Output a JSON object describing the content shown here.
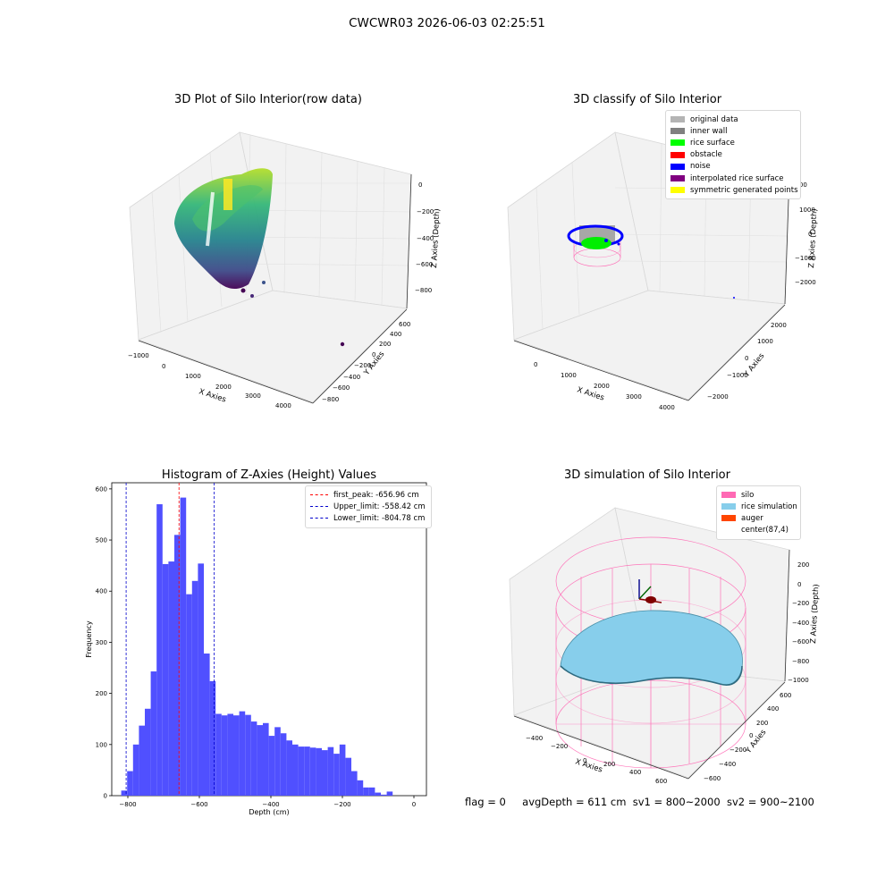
{
  "suptitle": "CWCWR03 2026-06-03 02:25:51",
  "panels": {
    "raw": {
      "title": "3D Plot of Silo Interior(row data)",
      "xlabel": "X Axies",
      "ylabel": "Y Axies",
      "zlabel": "Z Axies (Depth)",
      "xticks": [
        "−1000",
        "0",
        "1000",
        "2000",
        "3000",
        "4000"
      ],
      "yticks": [
        "600",
        "400",
        "200",
        "0",
        "−200",
        "−400",
        "−600",
        "−800"
      ],
      "zticks": [
        "0",
        "−200",
        "−400",
        "−600",
        "−800"
      ]
    },
    "classify": {
      "title": "3D classify of Silo Interior",
      "xlabel": "X Axies",
      "ylabel": "Y Axies",
      "zlabel": "Z Axies (Depth)",
      "xticks": [
        "0",
        "1000",
        "2000",
        "3000",
        "4000"
      ],
      "yticks": [
        "2000",
        "1000",
        "0",
        "−1000",
        "−2000"
      ],
      "zticks": [
        "1000",
        "0",
        "−1000",
        "−2000"
      ],
      "ztick_top": "1000",
      "legend": [
        {
          "label": "original data",
          "color": "#b4b4b4"
        },
        {
          "label": "inner wall",
          "color": "#808080"
        },
        {
          "label": "rice surface",
          "color": "#00ff00"
        },
        {
          "label": "obstacle",
          "color": "#ff0000"
        },
        {
          "label": "noise",
          "color": "#0000ff"
        },
        {
          "label": "interpolated rice surface",
          "color": "#800080"
        },
        {
          "label": "symmetric generated points",
          "color": "#ffff00"
        }
      ]
    },
    "simulation": {
      "title": "3D simulation of Silo Interior",
      "xlabel": "X Axies",
      "ylabel": "Y Axies",
      "zlabel": "Z Axies (Depth)",
      "xticks": [
        "−400",
        "−200",
        "0",
        "200",
        "400",
        "600"
      ],
      "yticks": [
        "600",
        "400",
        "200",
        "0",
        "−200",
        "−400",
        "−600"
      ],
      "zticks": [
        "200",
        "0",
        "−200",
        "−400",
        "−600",
        "−800",
        "−1000"
      ],
      "legend": [
        {
          "label": "silo",
          "color": "#ff69b4"
        },
        {
          "label": "rice simulation",
          "color": "#87ceeb"
        },
        {
          "label": "auger",
          "color": "#ff4500"
        },
        {
          "label": "center(87,4)",
          "color": "#ffffff"
        }
      ]
    }
  },
  "footer": {
    "flag": "flag = 0",
    "avg_depth": "avgDepth = 611 cm",
    "sv1": "sv1 = 800~2000",
    "sv2": "sv2 = 900~2100"
  },
  "colors": {
    "histogram": "#5050ff",
    "first_peak": "#ff0000",
    "limits": "#0000cc"
  },
  "chart_data": [
    {
      "type": "bar",
      "title": "Histogram of Z-Axies (Height) Values",
      "xlabel": "Depth (cm)",
      "ylabel": "Frequency",
      "xlim": [
        -845,
        35
      ],
      "ylim": [
        0,
        612
      ],
      "xticks": [
        "−800",
        "−600",
        "−400",
        "−200",
        "0"
      ],
      "yticks": [
        "0",
        "100",
        "200",
        "300",
        "400",
        "500",
        "600"
      ],
      "bin_start": -818.5,
      "bin_width": 16.5,
      "values": [
        10,
        48,
        100,
        137,
        170,
        243,
        570,
        453,
        458,
        510,
        583,
        394,
        420,
        454,
        278,
        224,
        160,
        157,
        160,
        157,
        165,
        158,
        145,
        138,
        142,
        117,
        134,
        122,
        108,
        100,
        96,
        96,
        94,
        93,
        89,
        95,
        82,
        100,
        74,
        48,
        30,
        16,
        16,
        6,
        2,
        8
      ],
      "lines": [
        {
          "label": "first_peak: -656.96 cm",
          "x": -656.96,
          "color": "#ff0000"
        },
        {
          "label": "Upper_limit: -558.42 cm",
          "x": -558.42,
          "color": "#0000cc"
        },
        {
          "label": "Lower_limit: -804.78 cm",
          "x": -804.78,
          "color": "#0000cc"
        }
      ],
      "legend_position": "upper right"
    }
  ]
}
